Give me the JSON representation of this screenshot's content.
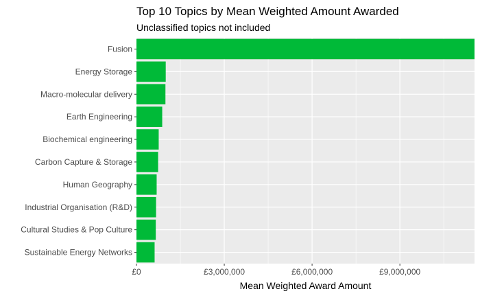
{
  "chart_data": {
    "type": "bar",
    "orientation": "horizontal",
    "title": "Top 10 Topics by Mean Weighted Amount Awarded",
    "subtitle": "Unclassified topics not included",
    "xlabel": "Mean Weighted Award Amount",
    "ylabel": "",
    "categories": [
      "Fusion",
      "Energy Storage",
      "Macro-molecular delivery",
      "Earth Engineering",
      "Biochemical engineering",
      "Carbon Capture & Storage",
      "Human Geography",
      "Industrial Organisation (R&D)",
      "Cultural Studies & Pop Culture",
      "Sustainable Energy Networks"
    ],
    "values": [
      11550000,
      1000000,
      990000,
      880000,
      760000,
      740000,
      690000,
      670000,
      660000,
      620000
    ],
    "xlim": [
      0,
      11550000
    ],
    "xticks": [
      0,
      3000000,
      6000000,
      9000000
    ],
    "xtick_labels": [
      "£0",
      "£3,000,000",
      "£6,000,000",
      "£9,000,000"
    ],
    "bar_color": "#00BA38",
    "panel_background": "#EBEBEB",
    "grid_color": "#FFFFFF",
    "grid": true,
    "legend": "none"
  }
}
